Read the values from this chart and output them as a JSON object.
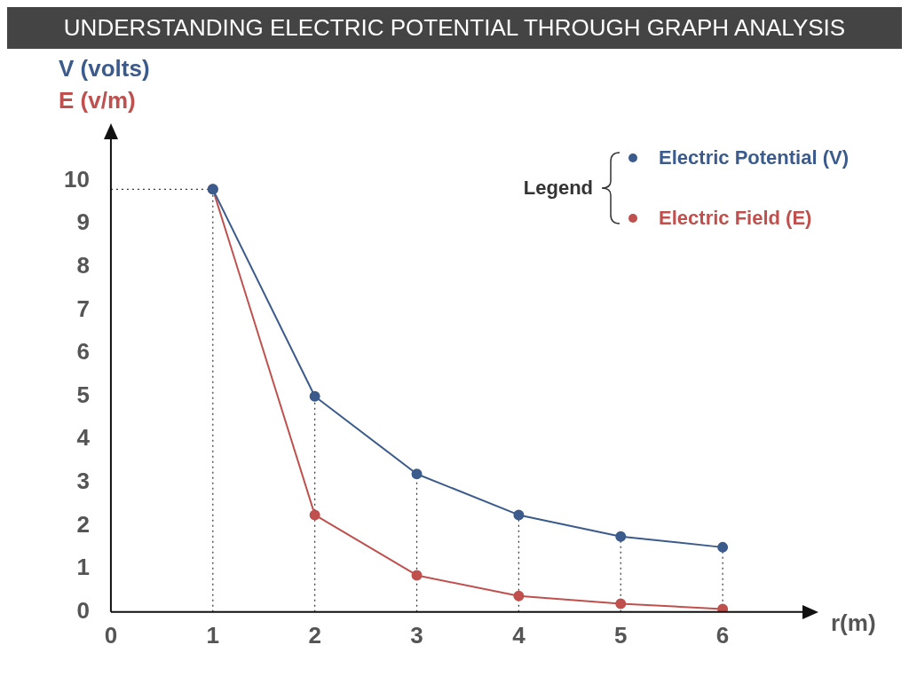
{
  "chart_data": {
    "type": "line",
    "title": "UNDERSTANDING ELECTRIC POTENTIAL THROUGH GRAPH ANALYSIS",
    "ylabel": "V (volts)",
    "annotations": [
      "E (v/m)"
    ],
    "xlabel": "r(m)",
    "legend_title": "Legend",
    "legend": "top right",
    "marker": "circle",
    "grid": false,
    "x": [
      1,
      2,
      3,
      4,
      5,
      6
    ],
    "series": [
      {
        "name": "Electric Potential (V)",
        "color": "#3b5b8c",
        "values": [
          9.8,
          5,
          3.2,
          2.25,
          1.75,
          1.5
        ]
      },
      {
        "name": "Electric Field (E)",
        "color": "#c0504d",
        "values": [
          9.8,
          2.25,
          0.85,
          0.37,
          0.19,
          0.07
        ]
      }
    ],
    "xlim": [
      0,
      6.8
    ],
    "xticks": [
      0,
      1,
      2,
      3,
      4,
      5,
      6
    ],
    "ylim": [
      0,
      11
    ],
    "yticks": [
      0,
      1,
      2,
      3,
      4,
      5,
      6,
      7,
      8,
      9,
      10
    ],
    "ref_lines": [
      {
        "axis": "x",
        "value": 1,
        "line_style": "dotted",
        "color": "#333333"
      },
      {
        "axis": "x",
        "value": 2,
        "line_style": "dotted",
        "color": "#333333"
      },
      {
        "axis": "x",
        "value": 3,
        "line_style": "dotted",
        "color": "#333333"
      },
      {
        "axis": "x",
        "value": 4,
        "line_style": "dotted",
        "color": "#333333"
      },
      {
        "axis": "x",
        "value": 5,
        "line_style": "dotted",
        "color": "#333333"
      },
      {
        "axis": "x",
        "value": 6,
        "line_style": "dotted",
        "color": "#333333"
      },
      {
        "axis": "y",
        "value": 9.8,
        "line_style": "dotted",
        "color": "#333333"
      }
    ]
  }
}
